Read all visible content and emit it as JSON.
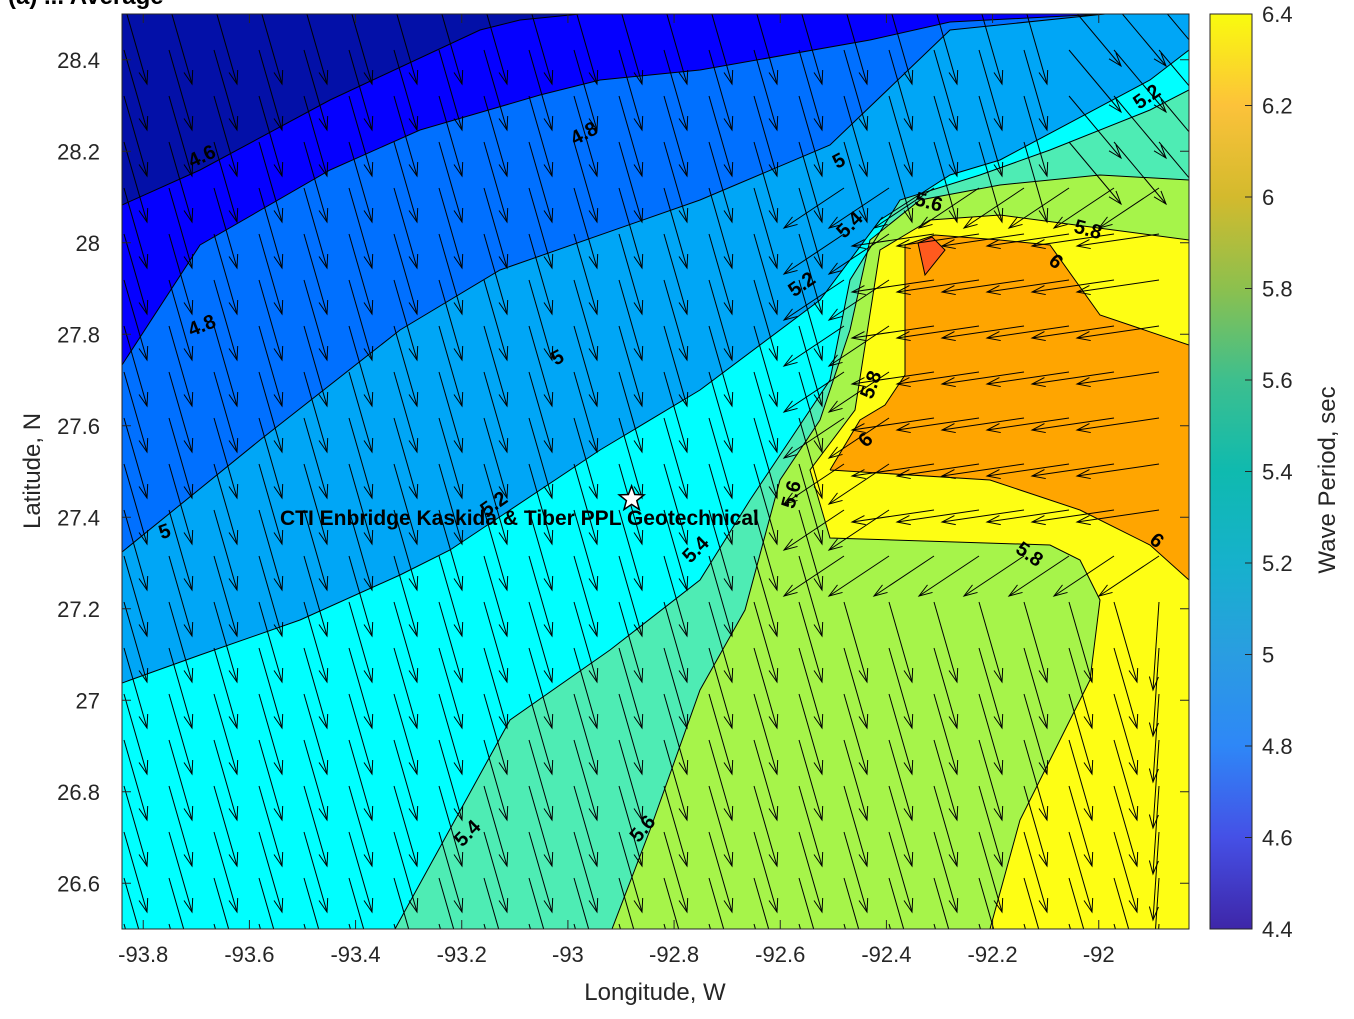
{
  "chart_data": {
    "type": "contour",
    "title": "(a) ... Average",
    "xlabel": "Longitude, W",
    "ylabel": "Latitude, N",
    "xlim": [
      -93.84,
      -91.83
    ],
    "ylim": [
      26.5,
      28.5
    ],
    "x_ticks": [
      -93.8,
      -93.6,
      -93.4,
      -93.2,
      -93.0,
      -92.8,
      -92.6,
      -92.4,
      -92.2,
      -92.0
    ],
    "x_tick_labels": [
      "-93.8",
      "-93.6",
      "-93.4",
      "-93.2",
      "-93",
      "-92.8",
      "-92.6",
      "-92.4",
      "-92.2",
      "-92"
    ],
    "y_ticks": [
      28.4,
      28.2,
      28.0,
      27.8,
      27.6,
      27.4,
      27.2,
      27.0,
      26.8,
      26.6
    ],
    "y_tick_labels": [
      "28.4",
      "28.2",
      "28",
      "27.8",
      "27.6",
      "27.4",
      "27.2",
      "27",
      "26.8",
      "26.6"
    ],
    "colorbar": {
      "label": "Wave Period, sec",
      "range": [
        4.4,
        6.4
      ],
      "ticks": [
        6.4,
        6.2,
        6.0,
        5.8,
        5.6,
        5.4,
        5.2,
        5.0,
        4.8,
        4.6,
        4.4
      ],
      "tick_labels": [
        "6.4",
        "6.2",
        "6",
        "5.8",
        "5.6",
        "5.4",
        "5.2",
        "5",
        "4.8",
        "4.6",
        "4.4"
      ],
      "colormap": "parula"
    },
    "contour_levels": [
      4.6,
      4.8,
      5.0,
      5.2,
      5.4,
      5.6,
      5.8,
      6.0,
      6.2
    ],
    "contour_labels": [
      {
        "text": "4.6",
        "lon": -93.69,
        "lat": 28.19,
        "angle": -25
      },
      {
        "text": "4.8",
        "lon": -92.97,
        "lat": 28.24,
        "angle": -28
      },
      {
        "text": "4.8",
        "lon": -93.69,
        "lat": 27.82,
        "angle": -22
      },
      {
        "text": "5",
        "lon": -93.02,
        "lat": 27.75,
        "angle": -28
      },
      {
        "text": "5",
        "lon": -92.49,
        "lat": 28.18,
        "angle": -28
      },
      {
        "text": "5",
        "lon": -93.76,
        "lat": 27.37,
        "angle": -20
      },
      {
        "text": "5.2",
        "lon": -92.56,
        "lat": 27.91,
        "angle": -35
      },
      {
        "text": "5.2",
        "lon": -91.91,
        "lat": 28.32,
        "angle": -35
      },
      {
        "text": "5.2",
        "lon": -93.14,
        "lat": 27.43,
        "angle": -35
      },
      {
        "text": "5.4",
        "lon": -92.47,
        "lat": 28.04,
        "angle": -45
      },
      {
        "text": "5.4",
        "lon": -92.76,
        "lat": 27.33,
        "angle": -45
      },
      {
        "text": "5.4",
        "lon": -93.19,
        "lat": 26.71,
        "angle": -45
      },
      {
        "text": "5.6",
        "lon": -92.32,
        "lat": 28.09,
        "angle": 15
      },
      {
        "text": "5.6",
        "lon": -92.58,
        "lat": 27.45,
        "angle": -75
      },
      {
        "text": "5.6",
        "lon": -92.86,
        "lat": 26.72,
        "angle": -50
      },
      {
        "text": "5.8",
        "lon": -92.43,
        "lat": 27.69,
        "angle": -70
      },
      {
        "text": "5.8",
        "lon": -92.02,
        "lat": 28.03,
        "angle": 15
      },
      {
        "text": "5.8",
        "lon": -92.13,
        "lat": 27.32,
        "angle": 35
      },
      {
        "text": "6",
        "lon": -92.08,
        "lat": 27.96,
        "angle": 40
      },
      {
        "text": "6",
        "lon": -92.44,
        "lat": 27.57,
        "angle": -45
      },
      {
        "text": "6",
        "lon": -91.89,
        "lat": 27.35,
        "angle": 40
      }
    ],
    "site_marker": {
      "lon": -92.88,
      "lat": 27.44,
      "symbol": "star"
    },
    "site_label": "CTI Enbridge  Kaskida & Tiber PPL Geotechnical",
    "colors": {
      "contour_line": "#000000",
      "arrow": "#000000",
      "frame": "#262626",
      "marker_fill": "#ffffff"
    }
  }
}
